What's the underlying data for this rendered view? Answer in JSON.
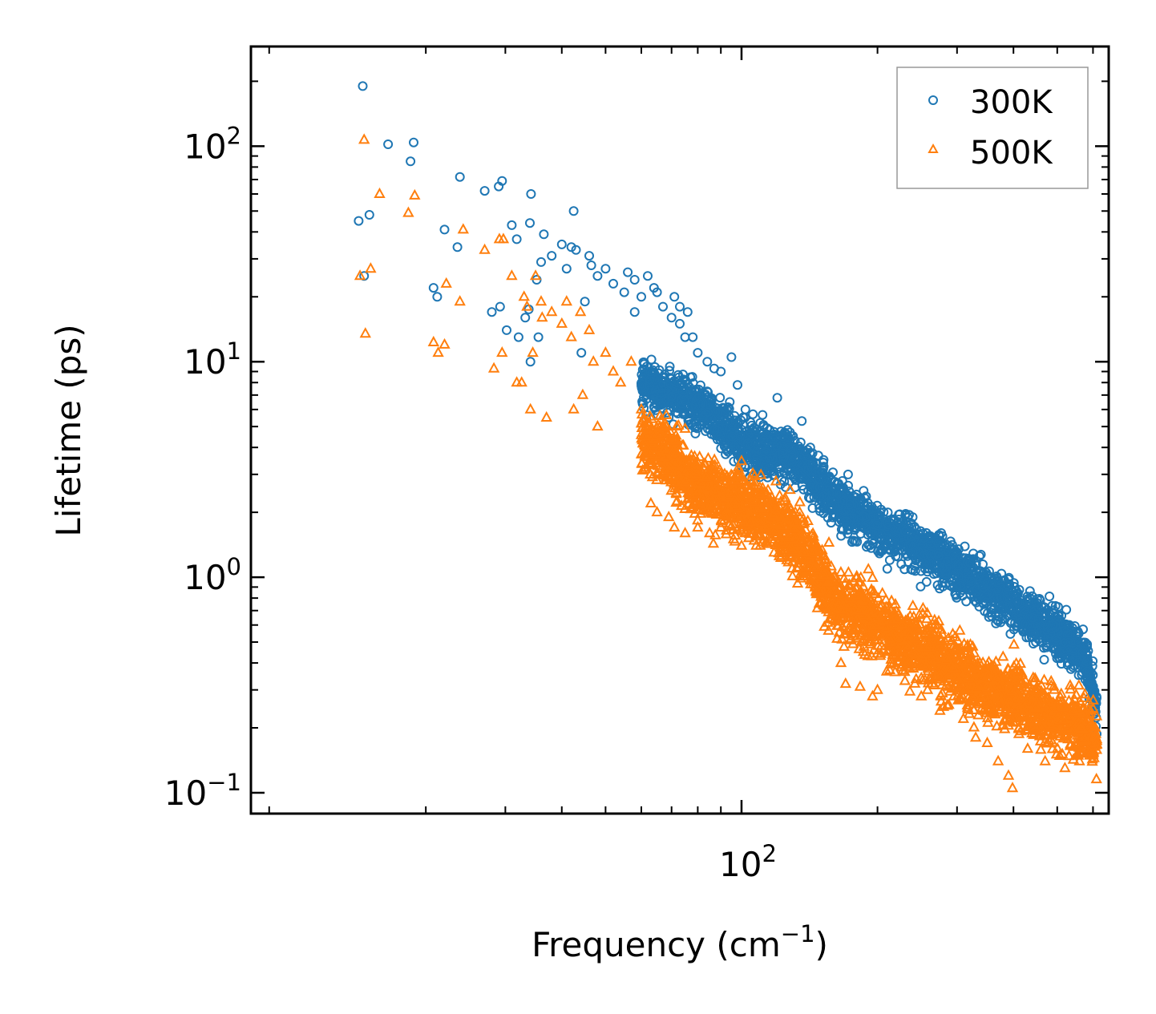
{
  "chart_data": {
    "type": "scatter",
    "title": "",
    "xlabel": "Frequency (cm",
    "xlabel_sup": "−1",
    "xlabel_end": ")",
    "ylabel": "Lifetime (ps)",
    "xscale": "log",
    "yscale": "log",
    "xlim": [
      8.2,
      650
    ],
    "ylim": [
      0.08,
      290
    ],
    "grid": false,
    "legend_position": "top-right",
    "x_ticks": [
      {
        "value": 100,
        "base": "10",
        "exp": "2"
      }
    ],
    "y_ticks": [
      {
        "value": 0.1,
        "base": "10",
        "exp": "−1"
      },
      {
        "value": 1,
        "base": "10",
        "exp": "0"
      },
      {
        "value": 10,
        "base": "10",
        "exp": "1"
      },
      {
        "value": 100,
        "base": "10",
        "exp": "2"
      }
    ],
    "series": [
      {
        "name": "300K",
        "color": "#1f77b4",
        "marker": "circle-open",
        "points": [
          [
            14.5,
            190
          ],
          [
            16.5,
            102
          ],
          [
            18.8,
            104
          ],
          [
            18.5,
            85
          ],
          [
            14.2,
            45
          ],
          [
            15.0,
            48
          ],
          [
            14.6,
            25
          ],
          [
            20.8,
            22
          ],
          [
            21.2,
            20
          ],
          [
            22.0,
            41
          ],
          [
            23.5,
            34
          ],
          [
            23.8,
            72
          ],
          [
            27,
            62
          ],
          [
            29,
            65
          ],
          [
            29.5,
            69
          ],
          [
            28,
            17
          ],
          [
            29.2,
            18
          ],
          [
            30.2,
            14
          ],
          [
            31.0,
            43
          ],
          [
            31.8,
            37
          ],
          [
            32.1,
            13
          ],
          [
            33.2,
            16
          ],
          [
            33.8,
            17.5
          ],
          [
            34,
            44
          ],
          [
            34.2,
            60
          ],
          [
            35.2,
            24
          ],
          [
            36,
            29
          ],
          [
            36.5,
            39
          ],
          [
            35.5,
            13
          ],
          [
            34.1,
            10
          ],
          [
            38,
            31
          ],
          [
            40,
            35
          ],
          [
            41,
            27
          ],
          [
            42,
            34
          ],
          [
            43,
            33
          ],
          [
            42.5,
            50
          ],
          [
            45,
            19
          ],
          [
            44.2,
            11
          ],
          [
            46,
            31
          ],
          [
            46.5,
            28
          ],
          [
            48,
            25
          ],
          [
            50,
            27
          ],
          [
            52,
            23
          ],
          [
            55,
            21
          ],
          [
            56,
            26
          ],
          [
            58,
            24
          ],
          [
            60,
            20
          ],
          [
            62,
            25
          ],
          [
            64,
            22
          ],
          [
            58,
            17
          ],
          [
            65,
            21
          ],
          [
            67,
            18
          ],
          [
            70,
            16
          ],
          [
            71,
            20
          ],
          [
            73,
            15
          ],
          [
            75,
            13
          ],
          [
            73,
            18
          ],
          [
            76,
            17
          ],
          [
            78,
            13
          ],
          [
            80,
            11
          ],
          [
            84,
            10
          ],
          [
            87,
            9.3
          ],
          [
            90,
            9
          ],
          [
            95,
            10.5
          ],
          [
            98,
            7.8
          ],
          [
            102,
            6.0
          ],
          [
            106,
            5.7
          ],
          [
            110,
            5.2
          ],
          [
            112,
            5.0
          ],
          [
            120,
            6.8
          ],
          [
            118,
            4.6
          ],
          [
            128,
            4.7
          ],
          [
            136,
            5.3
          ],
          [
            142,
            4.0
          ],
          [
            152,
            3.5
          ],
          [
            160,
            2.6
          ],
          [
            170,
            2.3
          ],
          [
            180,
            2.1
          ],
          [
            195,
            2.0
          ],
          [
            210,
            1.7
          ],
          [
            225,
            1.5
          ],
          [
            240,
            1.4
          ],
          [
            255,
            1.2
          ],
          [
            270,
            1.1
          ],
          [
            290,
            1.0
          ],
          [
            310,
            0.95
          ],
          [
            330,
            0.85
          ],
          [
            360,
            0.8
          ],
          [
            380,
            0.96
          ],
          [
            395,
            0.88
          ],
          [
            410,
            0.77
          ],
          [
            450,
            0.72
          ],
          [
            490,
            0.68
          ],
          [
            530,
            0.55
          ],
          [
            560,
            0.48
          ],
          [
            590,
            0.32
          ],
          [
            610,
            0.26
          ]
        ]
      },
      {
        "name": "500K",
        "color": "#ff7f0e",
        "marker": "triangle-open",
        "points": [
          [
            14.6,
            107
          ],
          [
            15.8,
            60
          ],
          [
            18.3,
            49
          ],
          [
            18.9,
            59
          ],
          [
            14.3,
            25
          ],
          [
            15.1,
            27
          ],
          [
            14.7,
            13.5
          ],
          [
            20.8,
            12.3
          ],
          [
            21.3,
            11
          ],
          [
            22.2,
            23
          ],
          [
            22.0,
            12
          ],
          [
            23.8,
            19
          ],
          [
            24.2,
            41
          ],
          [
            27,
            33
          ],
          [
            29.1,
            37
          ],
          [
            29.7,
            37
          ],
          [
            28.3,
            9.3
          ],
          [
            29.5,
            11
          ],
          [
            31.0,
            25
          ],
          [
            31.8,
            8
          ],
          [
            32.6,
            8
          ],
          [
            33.0,
            20
          ],
          [
            33.5,
            18
          ],
          [
            34.5,
            11
          ],
          [
            34.1,
            6
          ],
          [
            35.0,
            25
          ],
          [
            36,
            19
          ],
          [
            36.2,
            16
          ],
          [
            37,
            5.5
          ],
          [
            38,
            17
          ],
          [
            40,
            15
          ],
          [
            41,
            19
          ],
          [
            42,
            13
          ],
          [
            42.5,
            6
          ],
          [
            44,
            17
          ],
          [
            44.5,
            7
          ],
          [
            46,
            14
          ],
          [
            47,
            10
          ],
          [
            48,
            5
          ],
          [
            50,
            11
          ],
          [
            52,
            9
          ],
          [
            54,
            8
          ],
          [
            57,
            10
          ],
          [
            60,
            6
          ],
          [
            62,
            4.3
          ],
          [
            63,
            2.2
          ],
          [
            65,
            2.0
          ],
          [
            66,
            5.0
          ],
          [
            69,
            1.9
          ],
          [
            71,
            1.7
          ],
          [
            75,
            1.6
          ],
          [
            80,
            1.7
          ],
          [
            85,
            1.6
          ],
          [
            90,
            1.7
          ],
          [
            96,
            1.5
          ],
          [
            100,
            1.4
          ],
          [
            104,
            1.6
          ],
          [
            110,
            1.4
          ],
          [
            118,
            1.3
          ],
          [
            126,
            1.2
          ],
          [
            140,
            1.1
          ],
          [
            156,
            0.95
          ],
          [
            166,
            0.4
          ],
          [
            170,
            0.32
          ],
          [
            183,
            0.31
          ],
          [
            195,
            0.28
          ],
          [
            200,
            0.3
          ],
          [
            230,
            0.33
          ],
          [
            250,
            0.28
          ],
          [
            275,
            0.24
          ],
          [
            280,
            0.25
          ],
          [
            310,
            0.22
          ],
          [
            330,
            0.18
          ],
          [
            350,
            0.17
          ],
          [
            370,
            0.14
          ],
          [
            390,
            0.12
          ],
          [
            398,
            0.105
          ],
          [
            430,
            0.16
          ],
          [
            470,
            0.14
          ],
          [
            520,
            0.13
          ],
          [
            560,
            0.14
          ],
          [
            600,
            0.15
          ]
        ]
      }
    ]
  }
}
